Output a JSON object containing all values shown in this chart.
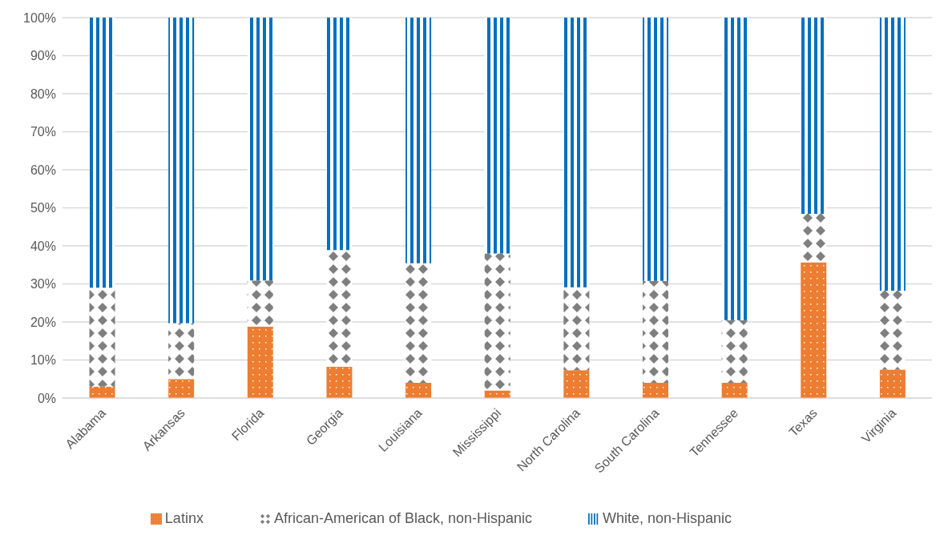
{
  "chart_data": {
    "type": "bar",
    "stacked": true,
    "categories": [
      "Alabama",
      "Arkansas",
      "Florida",
      "Georgia",
      "Louisiana",
      "Mississippi",
      "North Carolina",
      "South Carolina",
      "Tennessee",
      "Texas",
      "Virginia"
    ],
    "series": [
      {
        "name": "Latinx",
        "color": "#ed7d31",
        "values": [
          3,
          5,
          18.8,
          8.2,
          4,
          2,
          7.3,
          4,
          4,
          35.7,
          7.5
        ]
      },
      {
        "name": "African-American of Black, non-Hispanic",
        "color": "#7f7f7f",
        "values": [
          26,
          14.7,
          12.1,
          30.7,
          31.4,
          36,
          21.8,
          26.8,
          16.5,
          12.7,
          20.7
        ]
      },
      {
        "name": "White, non-Hispanic",
        "color": "#0070c0",
        "values": [
          71,
          80.3,
          69.1,
          61.1,
          64.6,
          62,
          70.9,
          69.2,
          79.5,
          51.6,
          71.8
        ]
      }
    ],
    "ylim": [
      0,
      100
    ],
    "yticks": [
      {
        "value": 0,
        "label": "0%"
      },
      {
        "value": 10,
        "label": "10%"
      },
      {
        "value": 20,
        "label": "20%"
      },
      {
        "value": 30,
        "label": "30%"
      },
      {
        "value": 40,
        "label": "40%"
      },
      {
        "value": 50,
        "label": "50%"
      },
      {
        "value": 60,
        "label": "60%"
      },
      {
        "value": 70,
        "label": "70%"
      },
      {
        "value": 80,
        "label": "80%"
      },
      {
        "value": 90,
        "label": "90%"
      },
      {
        "value": 100,
        "label": "100%"
      }
    ],
    "grid": "y",
    "legend": "bottom"
  }
}
